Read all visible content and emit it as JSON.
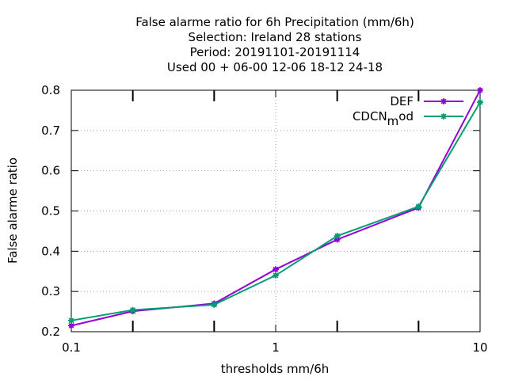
{
  "chart_data": {
    "type": "line",
    "title_lines": [
      "False alarme ratio  for 6h Precipitation (mm/6h)",
      "Selection: Ireland      28 stations",
      "Period: 20191101-20191114",
      "Used  00 + 06-00 12-06 18-12 24-18"
    ],
    "xlabel": "thresholds mm/6h",
    "ylabel": "False alarme ratio",
    "x_scale": "log",
    "xlim": [
      0.1,
      10
    ],
    "ylim": [
      0.2,
      0.8
    ],
    "x_ticks": [
      0.1,
      1,
      10
    ],
    "x_tick_labels": [
      "0.1",
      "1",
      "10"
    ],
    "x_minor_ticks": [
      0.2,
      0.5,
      2,
      5
    ],
    "y_ticks": [
      0.2,
      0.3,
      0.4,
      0.5,
      0.6,
      0.7,
      0.8
    ],
    "y_tick_labels": [
      "0.2",
      "0.3",
      "0.4",
      "0.5",
      "0.6",
      "0.7",
      "0.8"
    ],
    "grid": true,
    "legend_position": "top-right",
    "x": [
      0.1,
      0.2,
      0.5,
      1,
      2,
      5,
      10
    ],
    "series": [
      {
        "name": "DEF",
        "color": "#9400d3",
        "values": [
          0.215,
          0.251,
          0.27,
          0.355,
          0.429,
          0.508,
          0.8
        ]
      },
      {
        "name_main": "CDCN",
        "name_sub": "m",
        "name_tail": "od",
        "color": "#009e73",
        "values": [
          0.228,
          0.254,
          0.267,
          0.34,
          0.438,
          0.511,
          0.77
        ]
      }
    ]
  }
}
